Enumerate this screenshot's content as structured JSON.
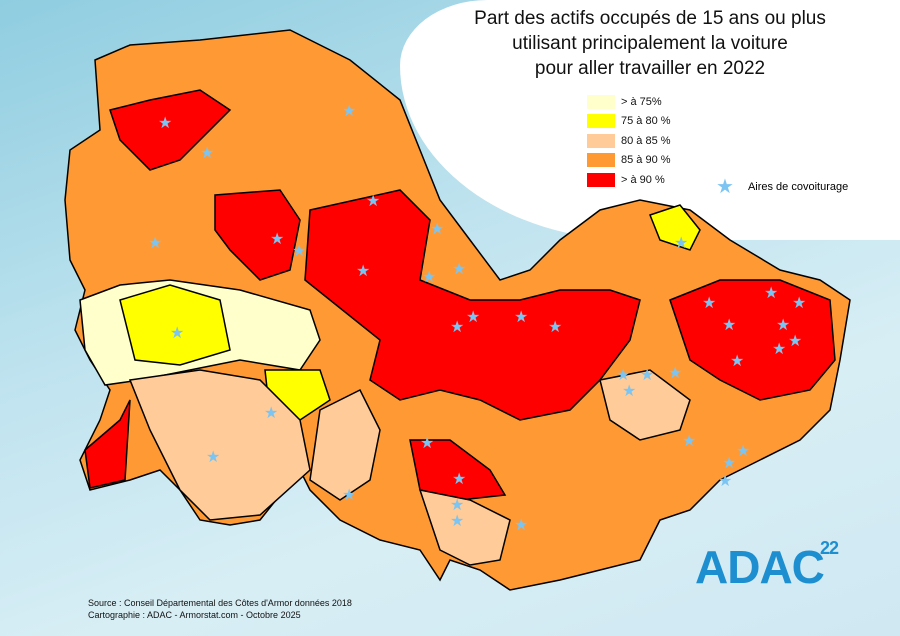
{
  "title": {
    "line1": "Part des actifs occupés de 15 ans ou plus",
    "line2": "utilisant principalement la voiture",
    "line3": "pour aller travailler en 2022"
  },
  "legend": {
    "classes": [
      {
        "label": "> à  75%",
        "color": "#ffffcc"
      },
      {
        "label": "75 à 80 %",
        "color": "#ffff00"
      },
      {
        "label": "80 à 85 %",
        "color": "#ffcc99"
      },
      {
        "label": "85 à 90 %",
        "color": "#ff9933"
      },
      {
        "label": "> à 90 %",
        "color": "#ff0000"
      }
    ],
    "carpool_label": "Aires de covoiturage",
    "carpool_icon": "star-icon",
    "carpool_color": "#7cc4f2"
  },
  "source": {
    "line1": "Source : Conseil Départemental des Côtes d'Armor données 2018",
    "line2": "Cartographie : ADAC - Armorstat.com - Octobre 2025"
  },
  "logo": {
    "text": "ADAC",
    "number": "22"
  }
}
